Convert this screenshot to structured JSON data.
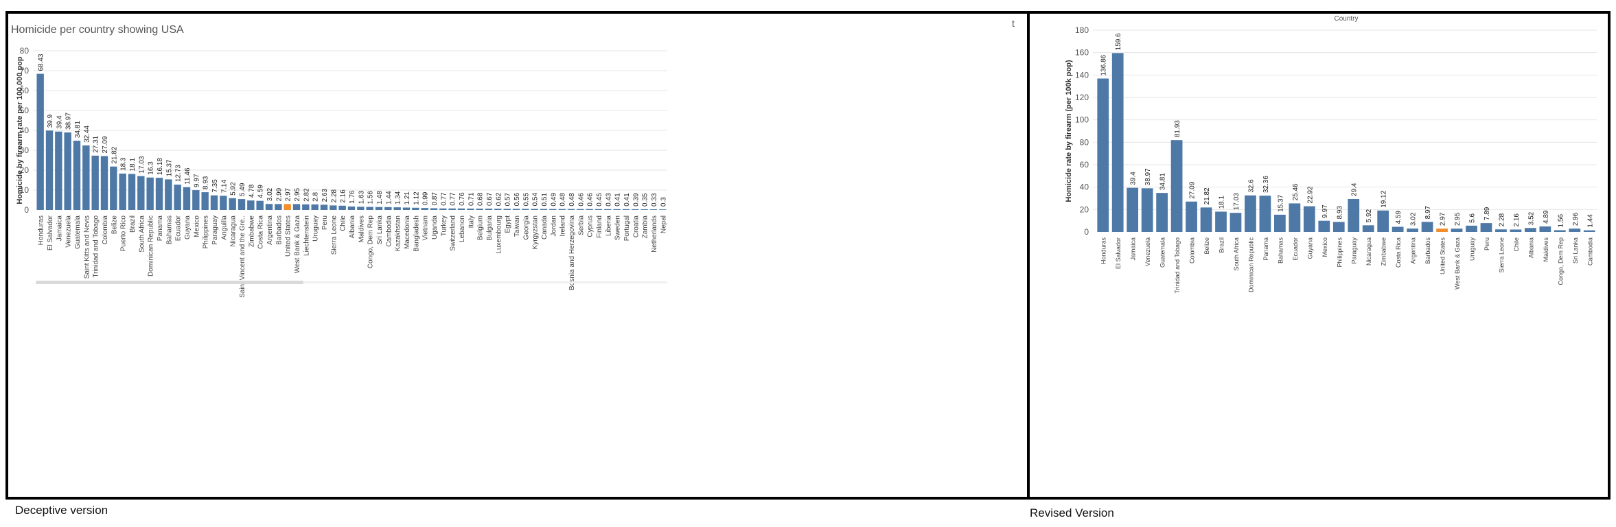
{
  "captions": {
    "left": "Deceptive version",
    "right": "Revised Version"
  },
  "colors": {
    "bar": "#4e79a7",
    "highlight": "#f28e2b",
    "grid": "#e6e6e6",
    "text": "#333333",
    "scrollbar": "#d9d9d9"
  },
  "corner_mark": "t",
  "chart_data": [
    {
      "type": "bar",
      "title": "Homicide per country showing USA",
      "ylabel": "Homicide by firearm rate per 100,000 pop",
      "ylim": [
        0,
        80
      ],
      "yticks": [
        0,
        10,
        20,
        30,
        40,
        50,
        60,
        70,
        80
      ],
      "highlight_category": "United States",
      "categories": [
        "Honduras",
        "El Salvador",
        "Jamaica",
        "Venezuela",
        "Guatemala",
        "Saint Kitts and Nevis",
        "Trinidad and Tobago",
        "Colombia",
        "Belize",
        "Puerto Rico",
        "Brazil",
        "South Africa",
        "Dominican Republic",
        "Panama",
        "Bahamas",
        "Ecuador",
        "Guyana",
        "Mexico",
        "Philippines",
        "Paraguay",
        "Anguilla",
        "Nicaragua",
        "Saint Vincent and the Gre..",
        "Zimbabwe",
        "Costa Rica",
        "Argentina",
        "Barbados",
        "United States",
        "West Bank & Gaza",
        "Liechtenstein",
        "Uruguay",
        "Peru",
        "Sierra Leone",
        "Chile",
        "Albania",
        "Maldives",
        "Congo, Dem Rep",
        "Sri Lanka",
        "Cambodia",
        "Kazakhstan",
        "Macedonia",
        "Bangladesh",
        "Vietnam",
        "Uganda",
        "Turkey",
        "Switzerland",
        "Lebanon",
        "Italy",
        "Belgium",
        "Bulgaria",
        "Luxembourg",
        "Egypt",
        "Taiwan",
        "Georgia",
        "Kyrgyzstan",
        "Canada",
        "Jordan",
        "Ireland",
        "Bosnia and Herzegovina",
        "Serbia",
        "Cyprus",
        "Finland",
        "Liberia",
        "Sweden",
        "Portugal",
        "Croatia",
        "Zambia",
        "Netherlands",
        "Nepal"
      ],
      "values": [
        68.43,
        39.9,
        39.4,
        38.97,
        34.81,
        32.44,
        27.31,
        27.09,
        21.82,
        18.3,
        18.1,
        17.03,
        16.3,
        16.18,
        15.37,
        12.73,
        11.46,
        9.97,
        8.93,
        7.35,
        7.14,
        5.92,
        5.49,
        4.78,
        4.59,
        3.02,
        2.99,
        2.97,
        2.95,
        2.82,
        2.8,
        2.63,
        2.28,
        2.16,
        1.76,
        1.63,
        1.56,
        1.48,
        1.44,
        1.34,
        1.21,
        1.12,
        0.99,
        0.87,
        0.77,
        0.77,
        0.76,
        0.71,
        0.68,
        0.67,
        0.62,
        0.57,
        0.56,
        0.55,
        0.54,
        0.51,
        0.49,
        0.48,
        0.48,
        0.46,
        0.46,
        0.45,
        0.43,
        0.41,
        0.41,
        0.39,
        0.35,
        0.33,
        0.3
      ],
      "data_labels": [
        "68.43",
        "39.9",
        "39.4",
        "38.97",
        "34.81",
        "32.44",
        "27.31",
        "27.09",
        "21.82",
        "18.3",
        "18.1",
        "17.03",
        "16.3",
        "16.18",
        "15.37",
        "12.73",
        "11.46",
        "9.97",
        "8.93",
        "7.35",
        "7.14",
        "5.92",
        "5.49",
        "4.78",
        "4.59",
        "3.02",
        "2.99",
        "2.97",
        "2.95",
        "2.82",
        "2.8",
        "2.63",
        "2.28",
        "2.16",
        "1.76",
        "1.63",
        "1.56",
        "1.48",
        "1.44",
        "1.34",
        "1.21",
        "1.12",
        "0.99",
        "0.87",
        "0.77",
        "0.77",
        "0.76",
        "0.71",
        "0.68",
        "0.67",
        "0.62",
        "0.57",
        "0.56",
        "0.55",
        "0.54",
        "0.51",
        "0.49",
        "0.48",
        "0.48",
        "0.46",
        "0.46",
        "0.45",
        "0.43",
        "0.41",
        "0.41",
        "0.39",
        "0.35",
        "0.33",
        "0.3"
      ],
      "grid": true,
      "scrollbar": true
    },
    {
      "type": "bar",
      "title": "Country",
      "ylabel": "Homicide rate by firearm (per 100k pop)",
      "ylim": [
        0,
        180
      ],
      "yticks": [
        0,
        20,
        40,
        60,
        80,
        100,
        120,
        140,
        160,
        180
      ],
      "highlight_category": "United States",
      "categories": [
        "Honduras",
        "El Salvador",
        "Jamaica",
        "Venezuela",
        "Guatemala",
        "Trinidad and Tobago",
        "Colombia",
        "Belize",
        "Brazil",
        "South Africa",
        "Dominican Republic",
        "Panama",
        "Bahamas",
        "Ecuador",
        "Guyana",
        "Mexico",
        "Philippines",
        "Paraguay",
        "Nicaragua",
        "Zimbabwe",
        "Costa Rica",
        "Argentina",
        "Barbados",
        "United States",
        "West Bank & Gaza",
        "Uruguay",
        "Peru",
        "Sierra Leone",
        "Chile",
        "Albania",
        "Maldives",
        "Congo, Dem Rep",
        "Sri Lanka",
        "Cambodia"
      ],
      "values": [
        136.86,
        159.6,
        39.4,
        38.97,
        34.81,
        81.93,
        27.09,
        21.82,
        18.1,
        17.03,
        32.6,
        32.36,
        15.37,
        25.46,
        22.92,
        9.97,
        8.93,
        29.4,
        5.92,
        19.12,
        4.59,
        3.02,
        8.97,
        2.97,
        2.95,
        5.6,
        7.89,
        2.28,
        2.16,
        3.52,
        4.89,
        1.56,
        2.96,
        1.44
      ],
      "data_labels": [
        "136.86",
        "159.6",
        "39.4",
        "38.97",
        "34.81",
        "81.93",
        "27.09",
        "21.82",
        "18.1",
        "17.03",
        "32.6",
        "32.36",
        "15.37",
        "25.46",
        "22.92",
        "9.97",
        "8.93",
        "29.4",
        "5.92",
        "19.12",
        "4.59",
        "3.02",
        "8.97",
        "2.97",
        "2.95",
        "5.6",
        "7.89",
        "2.28",
        "2.16",
        "3.52",
        "4.89",
        "1.56",
        "2.96",
        "1.44"
      ],
      "grid": true,
      "scrollbar": false
    }
  ]
}
